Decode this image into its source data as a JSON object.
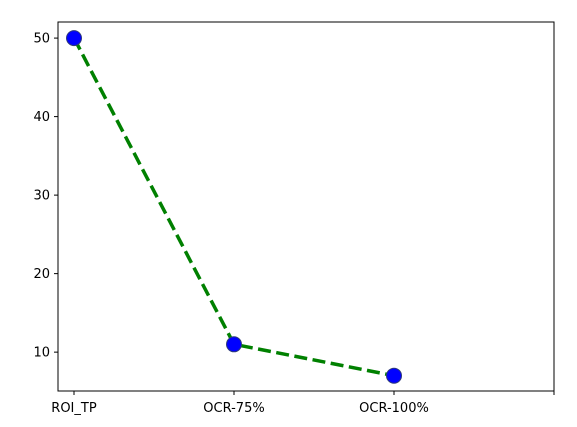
{
  "chart_data": {
    "type": "line",
    "title": "",
    "xlabel": "",
    "ylabel": "",
    "categories": [
      "ROI_TP",
      "OCR-75%",
      "OCR-100%"
    ],
    "series": [
      {
        "values": [
          50,
          11,
          7
        ],
        "color": "#008000",
        "line_style": "dashed",
        "marker": "circle",
        "marker_color": "#0000ff"
      }
    ],
    "x_ticks": [
      "ROI_TP",
      "OCR-75%",
      "OCR-100%",
      ""
    ],
    "y_ticks": [
      10,
      20,
      30,
      40,
      50
    ],
    "ylim": [
      5.05,
      52.05
    ],
    "xlim": [
      -0.1,
      3.0
    ],
    "grid": false,
    "legend": "none"
  }
}
